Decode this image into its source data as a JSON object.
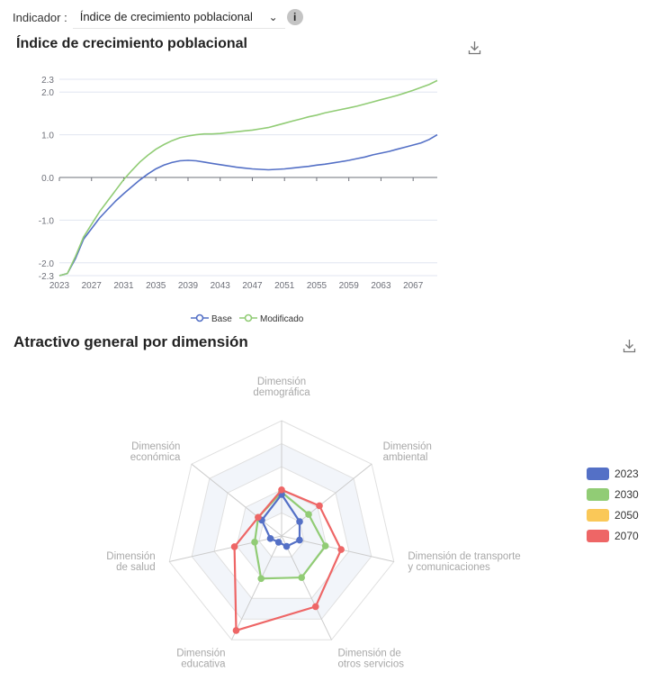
{
  "indicator": {
    "label": "Indicador :",
    "selected": "Índice de crecimiento poblacional"
  },
  "colors": {
    "base": "#5470c6",
    "modificado": "#91cc75",
    "y2023": "#5470c6",
    "y2030": "#91cc75",
    "y2050": "#fac858",
    "y2070": "#ee6666"
  },
  "chart_data": [
    {
      "type": "line",
      "title": "Índice de crecimiento poblacional",
      "xlabel": "",
      "ylabel": "",
      "xlim": [
        2023,
        2070
      ],
      "ylim": [
        -2.3,
        2.3
      ],
      "xticks": [
        "2023",
        "2027",
        "2031",
        "2035",
        "2039",
        "2043",
        "2047",
        "2051",
        "2055",
        "2059",
        "2063",
        "2067"
      ],
      "yticks": [
        "2.3",
        "2.0",
        "1.0",
        "0.0",
        "-1.0",
        "-2.0",
        "-2.3"
      ],
      "legend": "bottom",
      "grid": true,
      "series": [
        {
          "name": "Base",
          "x": [
            2023,
            2024,
            2025,
            2026,
            2027,
            2028,
            2029,
            2030,
            2031,
            2032,
            2033,
            2034,
            2035,
            2036,
            2037,
            2038,
            2039,
            2040,
            2041,
            2042,
            2043,
            2044,
            2045,
            2046,
            2047,
            2048,
            2049,
            2050,
            2051,
            2052,
            2053,
            2054,
            2055,
            2056,
            2057,
            2058,
            2059,
            2060,
            2061,
            2062,
            2063,
            2064,
            2065,
            2066,
            2067,
            2068,
            2069,
            2070
          ],
          "y": [
            -2.3,
            -2.25,
            -1.9,
            -1.45,
            -1.2,
            -0.95,
            -0.75,
            -0.55,
            -0.38,
            -0.22,
            -0.06,
            0.08,
            0.2,
            0.29,
            0.35,
            0.39,
            0.4,
            0.39,
            0.36,
            0.33,
            0.3,
            0.27,
            0.24,
            0.22,
            0.2,
            0.19,
            0.18,
            0.19,
            0.2,
            0.22,
            0.24,
            0.26,
            0.29,
            0.31,
            0.34,
            0.37,
            0.4,
            0.44,
            0.48,
            0.53,
            0.57,
            0.61,
            0.66,
            0.71,
            0.76,
            0.81,
            0.89,
            1.0
          ]
        },
        {
          "name": "Modificado",
          "x": [
            2023,
            2024,
            2025,
            2026,
            2027,
            2028,
            2029,
            2030,
            2031,
            2032,
            2033,
            2034,
            2035,
            2036,
            2037,
            2038,
            2039,
            2040,
            2041,
            2042,
            2043,
            2044,
            2045,
            2046,
            2047,
            2048,
            2049,
            2050,
            2051,
            2052,
            2053,
            2054,
            2055,
            2056,
            2057,
            2058,
            2059,
            2060,
            2061,
            2062,
            2063,
            2064,
            2065,
            2066,
            2067,
            2068,
            2069,
            2070
          ],
          "y": [
            -2.3,
            -2.25,
            -1.85,
            -1.4,
            -1.1,
            -0.8,
            -0.55,
            -0.3,
            -0.05,
            0.16,
            0.36,
            0.52,
            0.66,
            0.77,
            0.86,
            0.93,
            0.97,
            1.0,
            1.02,
            1.02,
            1.03,
            1.05,
            1.07,
            1.09,
            1.11,
            1.14,
            1.17,
            1.22,
            1.27,
            1.32,
            1.37,
            1.42,
            1.46,
            1.51,
            1.55,
            1.59,
            1.63,
            1.67,
            1.72,
            1.77,
            1.82,
            1.87,
            1.92,
            1.98,
            2.04,
            2.11,
            2.18,
            2.27
          ]
        }
      ]
    },
    {
      "type": "radar",
      "title": "Atractivo general por dimensión",
      "legend": "right",
      "max": 1.0,
      "indicators": [
        {
          "l1": "Dimensión",
          "l2": "demográfica"
        },
        {
          "l1": "Dimensión",
          "l2": "ambiental"
        },
        {
          "l1": "Dimensión de transporte",
          "l2": "y comunicaciones"
        },
        {
          "l1": "Dimensión de",
          "l2": "otros servicios"
        },
        {
          "l1": "Dimensión",
          "l2": "educativa"
        },
        {
          "l1": "Dimensión",
          "l2": "de salud"
        },
        {
          "l1": "Dimensión",
          "l2": "económica"
        }
      ],
      "series": [
        {
          "name": "2023",
          "values": [
            0.36,
            0.2,
            0.16,
            0.1,
            0.06,
            0.1,
            0.22
          ]
        },
        {
          "name": "2030",
          "values": [
            0.38,
            0.3,
            0.39,
            0.4,
            0.41,
            0.24,
            0.26
          ]
        },
        {
          "name": "2050",
          "values": [
            0.0,
            0.0,
            0.0,
            0.0,
            0.0,
            0.0,
            0.0
          ]
        },
        {
          "name": "2070",
          "values": [
            0.4,
            0.42,
            0.53,
            0.68,
            0.91,
            0.42,
            0.26
          ]
        }
      ]
    }
  ]
}
